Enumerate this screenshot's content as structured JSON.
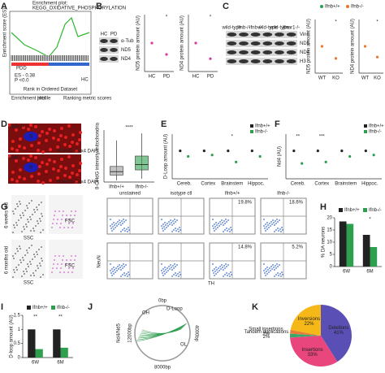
{
  "A": {
    "letter": "A",
    "title": [
      "Enrichment plot:",
      "KEGG_OXIDATIVE_PHOSPHORYLATION"
    ],
    "y_label": "Enrichment score (ES)",
    "groups": [
      "PDD",
      "HC"
    ],
    "stats": [
      "ES - 0.38",
      "P <0.0"
    ],
    "x_label": "Rank in Ordered Dataset",
    "legend": [
      "Enrichment profile",
      "Hits",
      "Ranking metric scores"
    ]
  },
  "B": {
    "letter": "B",
    "lanes": [
      "HC",
      "PD"
    ],
    "bands": [
      "α-Tub",
      "ND5",
      "ND4"
    ],
    "charts": [
      {
        "y_label": "ND5 protein amount (AU)",
        "categories": [
          "HC",
          "PD"
        ],
        "series": [
          {
            "color": "#d63a9a",
            "values": [
              1.0,
              0.6
            ]
          }
        ],
        "ylim": [
          0,
          2
        ],
        "significance": [
          {
            "category": 1,
            "label": "*"
          }
        ]
      },
      {
        "y_label": "ND4 protein amount (AU)",
        "categories": [
          "HC",
          "PD"
        ],
        "series": [
          {
            "color": "#d63a9a",
            "values": [
              1.0,
              0.45
            ]
          }
        ],
        "ylim": [
          0,
          2
        ],
        "significance": [
          {
            "category": 1,
            "label": "*"
          }
        ]
      }
    ]
  },
  "C": {
    "letter": "C",
    "lanes": [
      "wild-type",
      "Ifnb-/-",
      "Ifnb-/-",
      "wild-type",
      "wild-type",
      "Ifnar1-/-"
    ],
    "bands": [
      "Vinc",
      "ND5",
      "ND4",
      "H3"
    ],
    "legend": [
      {
        "name": "Ifnb+/+",
        "color": "#2e9e4f"
      },
      {
        "name": "Ifnb-/-",
        "color": "#e8772e"
      }
    ],
    "charts": [
      {
        "y_label": "ND5 protein amount (AU)",
        "categories": [
          "WT",
          "KO"
        ],
        "series": [
          {
            "color": "#e8772e",
            "values": [
              1.0,
              0.55
            ]
          }
        ],
        "ylim": [
          0,
          2
        ],
        "significance": [
          {
            "category": 1,
            "label": "*"
          }
        ]
      },
      {
        "y_label": "ND4 protein amount (AU)",
        "categories": [
          "WT",
          "KO"
        ],
        "series": [
          {
            "color": "#e8772e",
            "values": [
              1.0,
              0.6
            ]
          }
        ],
        "ylim": [
          0,
          2
        ],
        "significance": [
          {
            "category": 1,
            "label": "*"
          }
        ]
      }
    ]
  },
  "D": {
    "letter": "D",
    "image_labels": [
      "Ifnb+/+",
      "Ifnb-/-"
    ],
    "stain": "8OHdG Cox4 DAPI",
    "nucleus": "N",
    "chart": {
      "y_label": "8-OHdG intensity/mitochondria",
      "categories": [
        "Ifnb+/+",
        "Ifnb-/-"
      ],
      "low": [
        5,
        10
      ],
      "q1": [
        20,
        35
      ],
      "median": [
        30,
        50
      ],
      "q3": [
        45,
        75
      ],
      "high": [
        120,
        140
      ],
      "colors": [
        "#999999",
        "#2e9e4f"
      ],
      "ylim": [
        0,
        150
      ],
      "significance": "****"
    }
  },
  "E": {
    "letter": "E",
    "chart": {
      "y_label": "D-Loop amount (AU)",
      "categories": [
        "Cereb.",
        "Cortex",
        "Brainstem",
        "Hippoc."
      ],
      "series": [
        {
          "name": "Ifnb+/+",
          "color": "#222222",
          "values": [
            1.0,
            1.0,
            1.0,
            1.0
          ]
        },
        {
          "name": "Ifnb-/-",
          "color": "#2e9e4f",
          "values": [
            0.8,
            0.85,
            0.6,
            0.8
          ]
        }
      ],
      "ylim": [
        0,
        1.6
      ],
      "significance": [
        {
          "category": 2,
          "label": "*"
        }
      ]
    }
  },
  "F": {
    "letter": "F",
    "chart": {
      "y_label": "Nd4 (AU)",
      "categories": [
        "Cereb.",
        "Cortex",
        "Brainstem",
        "Hippoc."
      ],
      "series": [
        {
          "name": "Ifnb+/+",
          "color": "#222222",
          "values": [
            1.0,
            1.0,
            1.0,
            1.0
          ]
        },
        {
          "name": "Ifnb-/-",
          "color": "#2e9e4f",
          "values": [
            0.55,
            0.6,
            0.8,
            0.85
          ]
        }
      ],
      "ylim": [
        0,
        1.6
      ],
      "significance": [
        {
          "category": 0,
          "label": "**"
        },
        {
          "category": 1,
          "label": "***"
        }
      ]
    }
  },
  "G": {
    "letter": "G",
    "rows": [
      "6 weeks old",
      "6 months old"
    ],
    "columns": [
      "unstained",
      "isotype ctl",
      "Ifnb+/+",
      "Ifnb-/-"
    ],
    "axes": [
      "FSC",
      "SSC",
      "NeuN",
      "TH"
    ],
    "gates": [
      "19.8%",
      "18.6%",
      "14.8%",
      "5.2%"
    ]
  },
  "H": {
    "letter": "H",
    "chart": {
      "y_label": "% DA neurons",
      "categories": [
        "6W",
        "6M"
      ],
      "series": [
        {
          "name": "Ifnb+/+",
          "color": "#222222",
          "values": [
            18.5,
            13
          ]
        },
        {
          "name": "Ifnb-/-",
          "color": "#2e9e4f",
          "values": [
            17.5,
            8
          ]
        }
      ],
      "ylim": [
        0,
        20
      ],
      "yticks": [
        0,
        5,
        10,
        15,
        20
      ],
      "significance": [
        {
          "category": 1,
          "label": "*"
        }
      ]
    }
  },
  "I": {
    "letter": "I",
    "chart": {
      "y_label": "D-loop amount (AU)",
      "categories": [
        "6W",
        "6M"
      ],
      "series": [
        {
          "name": "Ifnb+/+",
          "color": "#222222",
          "values": [
            1.0,
            1.0
          ]
        },
        {
          "name": "Ifnb-/-",
          "color": "#2e9e4f",
          "values": [
            0.3,
            0.35
          ]
        }
      ],
      "ylim": [
        0,
        1.5
      ],
      "yticks": [
        0,
        0.5,
        1,
        1.5
      ],
      "significance": [
        {
          "category": 0,
          "label": "**"
        },
        {
          "category": 1,
          "label": "**"
        }
      ]
    }
  },
  "J": {
    "letter": "J",
    "labels": [
      "0bp",
      "4000bp",
      "8000bp",
      "12000bp",
      "Nd4/Nd5",
      "D-Loop",
      "OH",
      "OL"
    ]
  },
  "K": {
    "letter": "K",
    "chart": {
      "type": "pie",
      "categories": [
        "Deletions",
        "Insertions",
        "Small insertions",
        "Tandem duplications",
        "Inversions"
      ],
      "values": [
        41,
        33,
        2,
        2,
        22
      ],
      "value_labels": [
        "41%",
        "33%",
        "2%",
        "2%",
        "22%"
      ],
      "colors": [
        "#5a4fb5",
        "#e8467c",
        "#3aa86b",
        "#e87d3a",
        "#f5b818"
      ]
    }
  }
}
